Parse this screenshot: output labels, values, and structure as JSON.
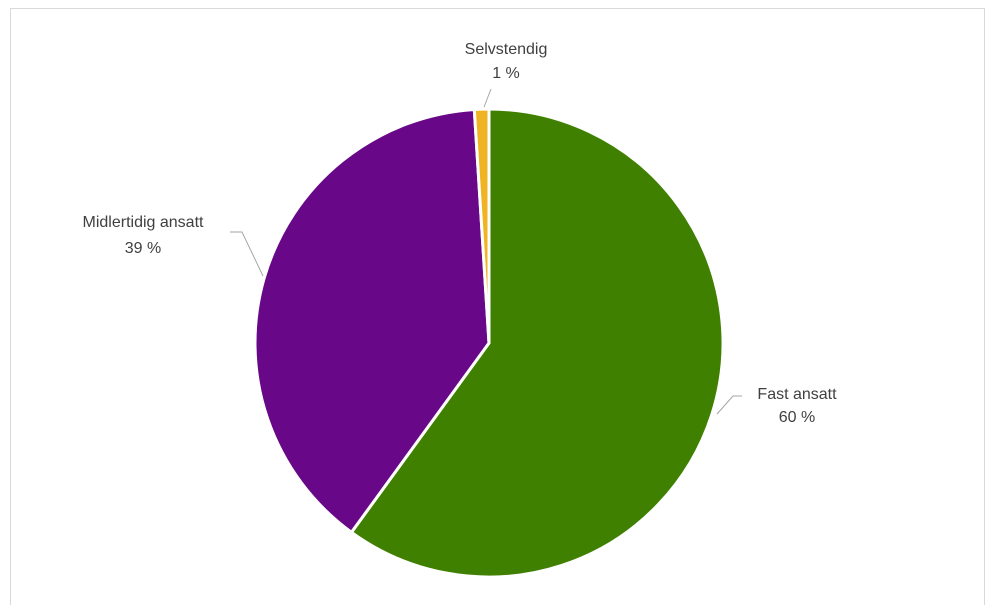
{
  "chart_data": {
    "type": "pie",
    "title": "",
    "slices": [
      {
        "name": "Fast ansatt",
        "value": 60,
        "label": "60 %",
        "color": "#3f8000"
      },
      {
        "name": "Midlertidig ansatt",
        "value": 39,
        "label": "39 %",
        "color": "#680787"
      },
      {
        "name": "Selvstendig",
        "value": 1,
        "label": "1 %",
        "color": "#f0b323"
      }
    ],
    "start_angle_deg": 0,
    "direction": "clockwise",
    "legend": "none",
    "labels": "outside-with-leader-lines"
  }
}
